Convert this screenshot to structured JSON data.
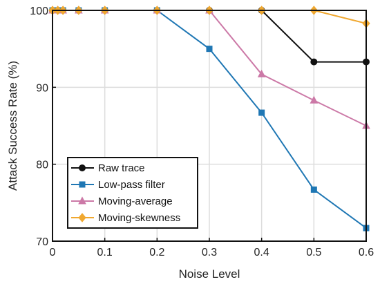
{
  "chart_data": {
    "type": "line",
    "xlabel": "Noise Level",
    "ylabel": "Attack Success Rate (%)",
    "xlim": [
      0,
      0.6
    ],
    "ylim": [
      70,
      100
    ],
    "x_ticks": [
      "0",
      "0.1",
      "0.2",
      "0.3",
      "0.4",
      "0.5",
      "0.6"
    ],
    "y_ticks": [
      "70",
      "80",
      "90",
      "100"
    ],
    "grid": true,
    "legend_position": "bottom-left",
    "x": [
      0,
      0.01,
      0.02,
      0.05,
      0.1,
      0.2,
      0.3,
      0.4,
      0.5,
      0.6
    ],
    "series": [
      {
        "name": "Raw trace",
        "color": "#111111",
        "marker": "circle",
        "values": [
          100,
          100,
          100,
          100,
          100,
          100,
          100,
          100,
          93.3,
          93.3
        ]
      },
      {
        "name": "Low-pass filter",
        "color": "#1f77b4",
        "marker": "square",
        "values": [
          100,
          100,
          100,
          100,
          100,
          100,
          95,
          86.7,
          76.7,
          71.7
        ]
      },
      {
        "name": "Moving-average",
        "color": "#cc79a7",
        "marker": "triangle",
        "values": [
          100,
          100,
          100,
          100,
          100,
          100,
          100,
          91.7,
          88.3,
          85
        ]
      },
      {
        "name": "Moving-skewness",
        "color": "#f0a830",
        "marker": "diamond",
        "values": [
          100,
          100,
          100,
          100,
          100,
          100,
          100,
          100,
          100,
          98.3
        ]
      }
    ]
  }
}
